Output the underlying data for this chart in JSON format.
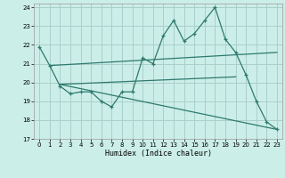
{
  "xlabel": "Humidex (Indice chaleur)",
  "xlim": [
    -0.5,
    23.5
  ],
  "ylim": [
    17,
    24.2
  ],
  "yticks": [
    17,
    18,
    19,
    20,
    21,
    22,
    23,
    24
  ],
  "xticks": [
    0,
    1,
    2,
    3,
    4,
    5,
    6,
    7,
    8,
    9,
    10,
    11,
    12,
    13,
    14,
    15,
    16,
    17,
    18,
    19,
    20,
    21,
    22,
    23
  ],
  "bg_color": "#cceee8",
  "line_color": "#2d7a6e",
  "grid_color": "#aacfca",
  "series_main": {
    "x": [
      0,
      1,
      2,
      3,
      4,
      5,
      6,
      7,
      8,
      9,
      10,
      11,
      12,
      13,
      14,
      15,
      16,
      17,
      18,
      19,
      20,
      21,
      22,
      23
    ],
    "y": [
      21.9,
      20.9,
      19.8,
      19.4,
      19.5,
      19.5,
      19.0,
      18.7,
      19.5,
      19.5,
      21.3,
      21.0,
      22.5,
      23.3,
      22.2,
      22.6,
      23.3,
      24.0,
      22.3,
      21.6,
      20.4,
      19.0,
      17.9,
      17.5
    ]
  },
  "series_upper": {
    "x": [
      1,
      23
    ],
    "y": [
      20.9,
      21.6
    ]
  },
  "series_mid": {
    "x": [
      2,
      19
    ],
    "y": [
      19.9,
      20.3
    ]
  },
  "series_lower": {
    "x": [
      2,
      23
    ],
    "y": [
      19.9,
      17.5
    ]
  }
}
